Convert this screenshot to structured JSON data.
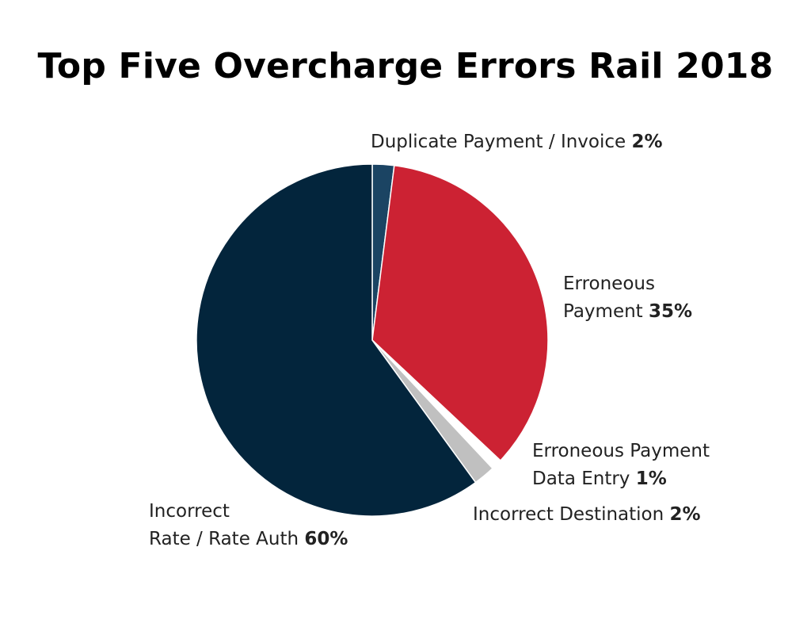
{
  "title": "Top Five Overcharge Errors Rail 2018",
  "chart_data": {
    "type": "pie",
    "title": "Top Five Overcharge Errors Rail 2018",
    "slices": [
      {
        "label_lines": [
          "Duplicate Payment / Invoice"
        ],
        "value": 2,
        "display": "2%",
        "color": "#1b4463"
      },
      {
        "label_lines": [
          "Erroneous",
          "Payment"
        ],
        "value": 35,
        "display": "35%",
        "color": "#cc2233"
      },
      {
        "label_lines": [
          "Erroneous Payment",
          "Data Entry"
        ],
        "value": 1,
        "display": "1%",
        "color": "#ffffff"
      },
      {
        "label_lines": [
          "Incorrect Destination"
        ],
        "value": 2,
        "display": "2%",
        "color": "#c0c0c0"
      },
      {
        "label_lines": [
          "Incorrect",
          "Rate / Rate Auth"
        ],
        "value": 60,
        "display": "60%",
        "color": "#03253c"
      }
    ],
    "start": "12 o'clock",
    "direction": "clockwise"
  }
}
